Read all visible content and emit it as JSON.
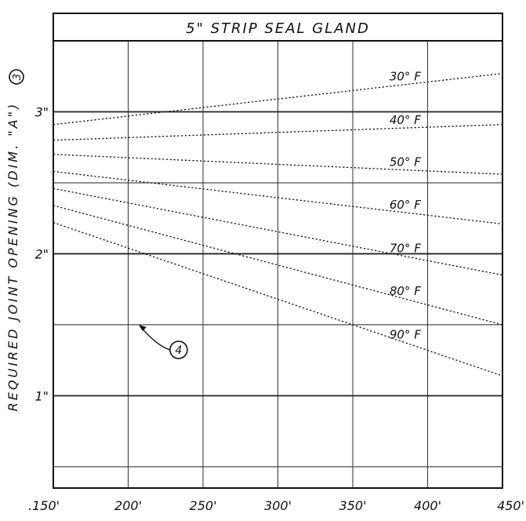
{
  "chart_data": {
    "type": "line",
    "title": "5\" STRIP SEAL GLAND",
    "xlabel": "",
    "ylabel": "REQUIRED JOINT OPENING (DIM. \"A\")",
    "ylabel_note_marker": "3",
    "xlim": [
      150,
      450
    ],
    "ylim": [
      0.35,
      3.5
    ],
    "x_ticks": [
      150,
      200,
      250,
      300,
      350,
      400,
      450
    ],
    "x_tick_labels": [
      ".150'",
      "200'",
      "250'",
      "300'",
      "350'",
      "400'",
      "450'"
    ],
    "y_ticks": [
      1,
      2,
      3
    ],
    "y_tick_labels": [
      "1\"",
      "2\"",
      "3\""
    ],
    "grid": true,
    "series": [
      {
        "name": "30° F",
        "x": [
          150,
          450
        ],
        "y": [
          2.91,
          3.27
        ]
      },
      {
        "name": "40° F",
        "x": [
          150,
          450
        ],
        "y": [
          2.8,
          2.91
        ]
      },
      {
        "name": "50° F",
        "x": [
          150,
          450
        ],
        "y": [
          2.7,
          2.56
        ]
      },
      {
        "name": "60° F",
        "x": [
          150,
          450
        ],
        "y": [
          2.58,
          2.21
        ]
      },
      {
        "name": "70° F",
        "x": [
          150,
          450
        ],
        "y": [
          2.46,
          1.85
        ]
      },
      {
        "name": "80° F",
        "x": [
          150,
          450
        ],
        "y": [
          2.34,
          1.5
        ]
      },
      {
        "name": "90° F",
        "x": [
          150,
          450
        ],
        "y": [
          2.22,
          1.14
        ]
      }
    ],
    "annotations": [
      {
        "label": "4",
        "points_to": {
          "x": 207,
          "y": 1.5
        }
      }
    ]
  }
}
